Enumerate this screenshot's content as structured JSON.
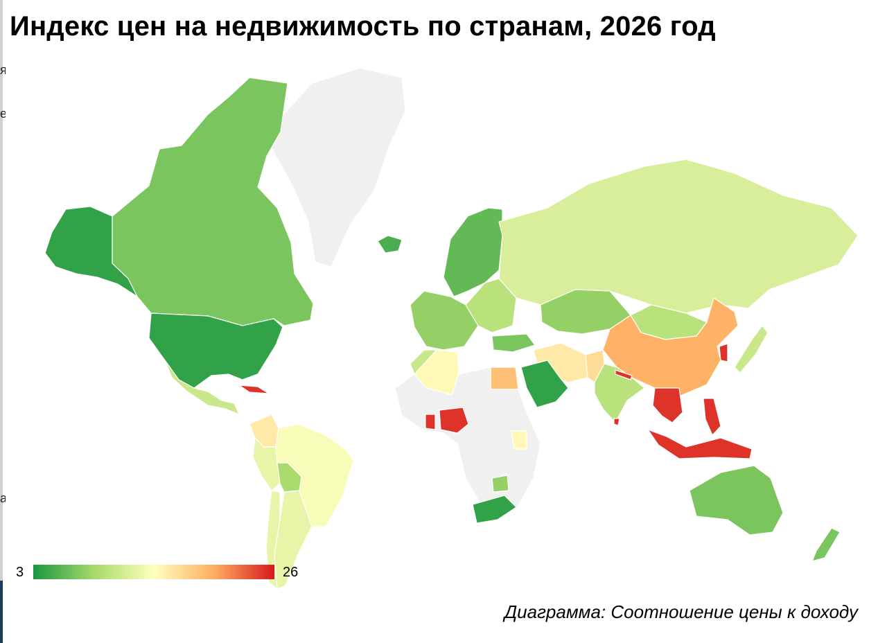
{
  "title": "Индекс цен на недвижимость по странам, 2026 год",
  "caption": "Диаграмма: Соотношение цены к доходу",
  "legend": {
    "min": "3",
    "max": "26",
    "colors": [
      "#1a9641",
      "#a6d96a",
      "#ffffbf",
      "#fdae61",
      "#d7191c"
    ]
  },
  "no_data_color": "#f0f0f0",
  "edge_glyphs": [
    "я",
    "е",
    "а"
  ],
  "map_data": {
    "type": "choropleth",
    "metric": "price-to-income ratio",
    "range": [
      3,
      26
    ],
    "regions": [
      {
        "id": "greenland",
        "value": null
      },
      {
        "id": "alaska",
        "value": 4
      },
      {
        "id": "canada",
        "value": 7
      },
      {
        "id": "usa",
        "value": 4
      },
      {
        "id": "mexico",
        "value": 11
      },
      {
        "id": "cuba",
        "value": 25
      },
      {
        "id": "colombia",
        "value": 16
      },
      {
        "id": "brazil",
        "value": 14
      },
      {
        "id": "peru",
        "value": 13
      },
      {
        "id": "bolivia",
        "value": 9
      },
      {
        "id": "argentina",
        "value": 13
      },
      {
        "id": "chile",
        "value": 13
      },
      {
        "id": "iceland",
        "value": 5
      },
      {
        "id": "scandinavia",
        "value": 6
      },
      {
        "id": "western-europe",
        "value": 8
      },
      {
        "id": "eastern-europe",
        "value": 10
      },
      {
        "id": "russia",
        "value": 12
      },
      {
        "id": "kazakhstan",
        "value": 8
      },
      {
        "id": "mongolia",
        "value": 10
      },
      {
        "id": "china",
        "value": 20
      },
      {
        "id": "korea",
        "value": 25
      },
      {
        "id": "japan",
        "value": 11
      },
      {
        "id": "turkey",
        "value": 7
      },
      {
        "id": "iran",
        "value": 16
      },
      {
        "id": "pakistan",
        "value": 17
      },
      {
        "id": "india",
        "value": 10
      },
      {
        "id": "nepal",
        "value": 25
      },
      {
        "id": "saudi-arabia",
        "value": 4
      },
      {
        "id": "egypt",
        "value": 19
      },
      {
        "id": "algeria",
        "value": 15
      },
      {
        "id": "morocco",
        "value": 11
      },
      {
        "id": "nigeria",
        "value": 25
      },
      {
        "id": "ghana",
        "value": 25
      },
      {
        "id": "kenya",
        "value": 15
      },
      {
        "id": "zimbabwe",
        "value": 8
      },
      {
        "id": "south-africa",
        "value": 4
      },
      {
        "id": "southeast-asia",
        "value": 25
      },
      {
        "id": "philippines",
        "value": 25
      },
      {
        "id": "indonesia",
        "value": 25
      },
      {
        "id": "sri-lanka",
        "value": 25
      },
      {
        "id": "australia",
        "value": 7
      },
      {
        "id": "new-zealand",
        "value": 7
      }
    ]
  }
}
